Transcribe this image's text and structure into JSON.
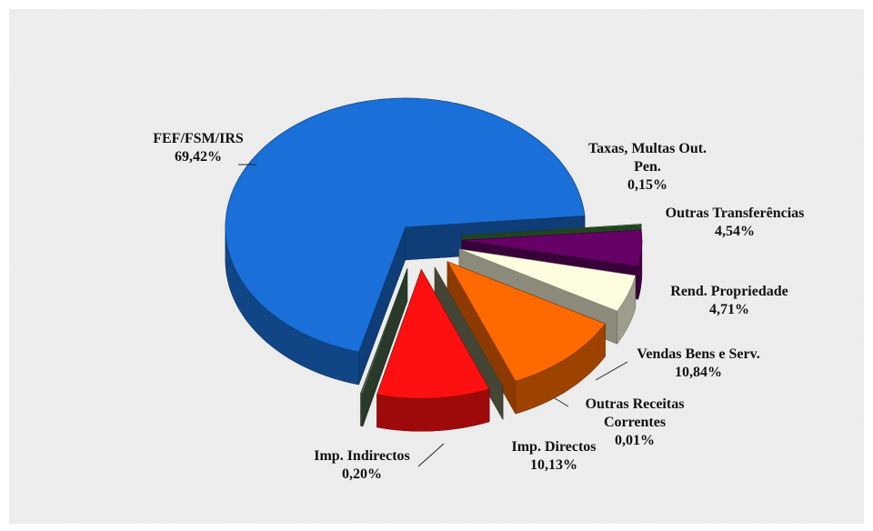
{
  "chart_data": {
    "type": "pie3d",
    "categories": [
      "FEF/FSM/IRS",
      "Taxas, Multas Out. Pen.",
      "Outras Transferências",
      "Rend. Propriedade",
      "Vendas Bens e Serv.",
      "Outras Receitas Correntes",
      "Imp. Directos",
      "Imp. Indirectos"
    ],
    "values": [
      69.42,
      0.15,
      4.54,
      4.71,
      10.84,
      0.01,
      10.13,
      0.2
    ],
    "value_labels": [
      "69,42%",
      "0,15%",
      "4,54%",
      "4,71%",
      "10,84%",
      "0,01%",
      "10,13%",
      "0,20%"
    ],
    "colors": [
      "#1a6fd8",
      "#3d7a3d",
      "#660066",
      "#fffde0",
      "#ff6a00",
      "#7d7d62",
      "#ff1010",
      "#4d6a4d"
    ]
  }
}
